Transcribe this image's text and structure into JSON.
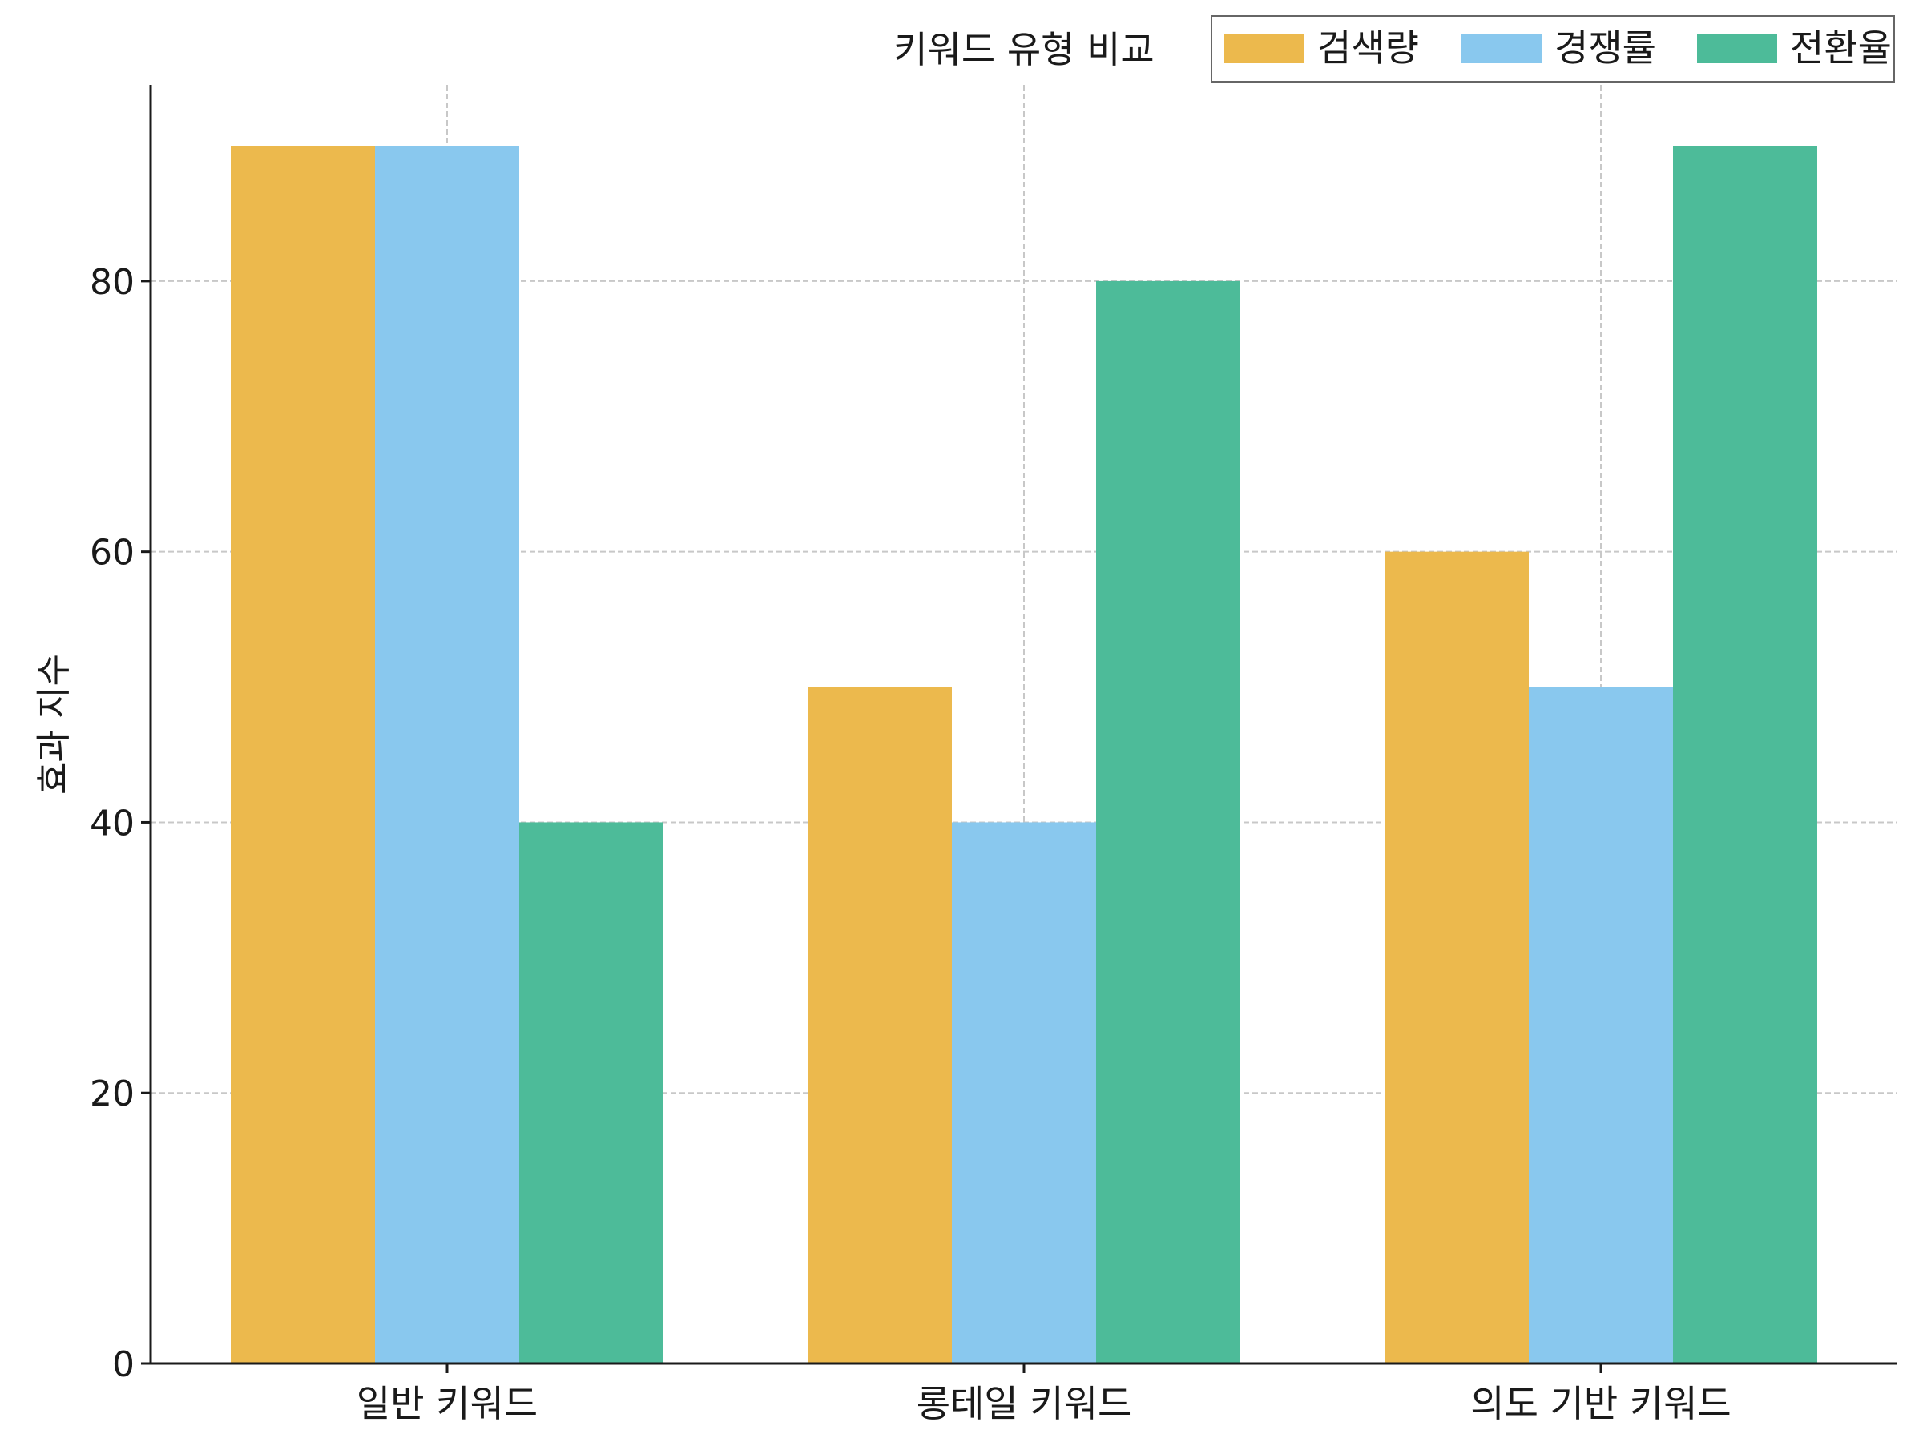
{
  "chart_data": {
    "type": "bar",
    "title": "키워드 유형 비교",
    "xlabel": "",
    "ylabel": "효과 지수",
    "categories": [
      "일반 키워드",
      "롱테일 키워드",
      "의도 기반 키워드"
    ],
    "series": [
      {
        "name": "검색량",
        "values": [
          90,
          50,
          60
        ],
        "color": "#ECB94D"
      },
      {
        "name": "경쟁률",
        "values": [
          90,
          40,
          50
        ],
        "color": "#89C8EE"
      },
      {
        "name": "전환율",
        "values": [
          40,
          80,
          90
        ],
        "color": "#4DBB99"
      }
    ],
    "ylim": [
      0,
      94.5
    ],
    "yticks": [
      0,
      20,
      40,
      60,
      80
    ],
    "grid": true,
    "legend_position": "top-right"
  }
}
